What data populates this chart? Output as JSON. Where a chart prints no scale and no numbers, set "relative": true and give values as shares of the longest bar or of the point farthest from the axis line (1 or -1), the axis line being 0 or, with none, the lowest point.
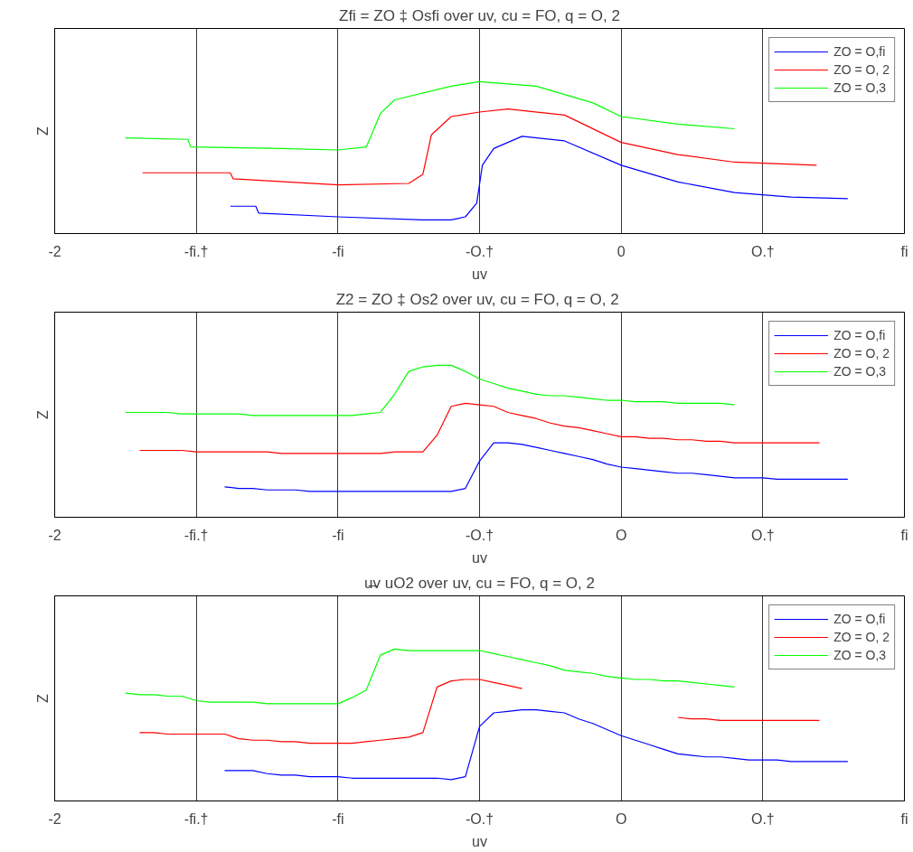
{
  "chart_data": [
    {
      "type": "line",
      "title": "Zfi = ZO ‡ Osfi over uv, cu = FO, q = O, 2",
      "xlabel": "uv",
      "ylabel": "Z",
      "xlim": [
        -2,
        1
      ],
      "relative": true,
      "xticks": [
        -2,
        {
          "value": -1.5,
          "label": "-fi.†"
        },
        {
          "value": -1,
          "label": "-fi"
        },
        {
          "value": -0.5,
          "label": "-O.†"
        },
        0,
        {
          "value": 0.5,
          "label": "O.†"
        },
        {
          "value": 1,
          "label": "fi"
        }
      ],
      "grid": "x",
      "legend": "top right",
      "series": [
        {
          "name": "ZO = O,fi",
          "color": "#0000ff",
          "x": [
            -1.38,
            -1.29,
            -1.28,
            -1.0,
            -0.7,
            -0.6,
            -0.55,
            -0.51,
            -0.49,
            -0.45,
            -0.35,
            -0.2,
            0,
            0.2,
            0.4,
            0.6,
            0.8
          ],
          "values": [
            0.18,
            0.18,
            0.135,
            0.11,
            0.09,
            0.09,
            0.11,
            0.2,
            0.45,
            0.56,
            0.64,
            0.61,
            0.45,
            0.34,
            0.27,
            0.24,
            0.23
          ]
        },
        {
          "name": "ZO = O, 2",
          "color": "#ff0000",
          "x": [
            -1.69,
            -1.38,
            -1.37,
            -1.0,
            -0.75,
            -0.7,
            -0.67,
            -0.6,
            -0.5,
            -0.4,
            -0.2,
            0,
            0.2,
            0.4,
            0.69
          ],
          "values": [
            0.4,
            0.4,
            0.36,
            0.32,
            0.33,
            0.39,
            0.65,
            0.77,
            0.8,
            0.82,
            0.78,
            0.6,
            0.52,
            0.47,
            0.45
          ]
        },
        {
          "name": "ZO = O,3",
          "color": "#00ff00",
          "x": [
            -1.75,
            -1.53,
            -1.52,
            -1.2,
            -1.0,
            -0.9,
            -0.85,
            -0.8,
            -0.6,
            -0.5,
            -0.3,
            -0.1,
            0,
            0.2,
            0.4
          ],
          "values": [
            0.63,
            0.62,
            0.57,
            0.56,
            0.55,
            0.57,
            0.79,
            0.88,
            0.97,
            1,
            0.97,
            0.86,
            0.77,
            0.72,
            0.69
          ]
        }
      ]
    },
    {
      "type": "line",
      "title": "Z2 = ZO ‡ Os2 over uv, cu = FO, q = O,  2",
      "xlabel": "uv",
      "ylabel": "Z",
      "relative": true,
      "grid": "x",
      "legend": "top right",
      "categories": [
        "-2",
        null,
        null,
        null,
        null,
        null,
        null,
        null,
        null,
        null,
        "-fi.†",
        null,
        null,
        null,
        null,
        null,
        null,
        null,
        null,
        null,
        "-fi",
        null,
        null,
        null,
        null,
        null,
        null,
        null,
        null,
        null,
        "-O.†",
        null,
        null,
        null,
        null,
        null,
        null,
        null,
        null,
        null,
        "O",
        null,
        null,
        null,
        null,
        null,
        null,
        null,
        null,
        null,
        "O.†",
        null,
        null,
        null,
        null,
        null,
        null,
        null,
        null,
        null,
        "fi"
      ],
      "series": [
        {
          "name": "ZO = O,fi",
          "color": "#0000ff",
          "values": [
            null,
            null,
            null,
            null,
            null,
            null,
            null,
            null,
            null,
            null,
            null,
            null,
            0.2,
            0.19,
            0.19,
            0.18,
            0.18,
            0.18,
            0.17,
            0.17,
            0.17,
            0.17,
            0.17,
            0.17,
            0.17,
            0.17,
            0.17,
            0.17,
            0.17,
            0.19,
            0.37,
            0.49,
            0.49,
            0.48,
            0.46,
            0.44,
            0.42,
            0.4,
            0.38,
            0.35,
            0.33,
            0.32,
            0.31,
            0.3,
            0.29,
            0.29,
            0.28,
            0.27,
            0.26,
            0.26,
            0.26,
            0.25,
            0.25,
            0.25,
            0.25,
            0.25,
            0.25,
            null,
            null,
            null,
            null
          ]
        },
        {
          "name": "ZO = O, 2",
          "color": "#ff0000",
          "values": [
            null,
            null,
            null,
            null,
            null,
            null,
            0.44,
            0.44,
            0.44,
            0.44,
            0.43,
            0.43,
            0.43,
            0.43,
            0.43,
            0.43,
            0.42,
            0.42,
            0.42,
            0.42,
            0.42,
            0.42,
            0.42,
            0.42,
            0.43,
            0.43,
            0.43,
            0.54,
            0.73,
            0.75,
            0.74,
            0.73,
            0.69,
            0.67,
            0.65,
            0.62,
            0.6,
            0.59,
            0.57,
            0.55,
            0.53,
            0.53,
            0.52,
            0.52,
            0.51,
            0.51,
            0.5,
            0.5,
            0.49,
            0.49,
            0.49,
            0.49,
            0.49,
            0.49,
            0.49,
            null,
            null,
            null,
            null,
            null,
            null
          ]
        },
        {
          "name": "ZO = O,3",
          "color": "#00ff00",
          "values": [
            null,
            null,
            null,
            null,
            null,
            0.69,
            0.69,
            0.69,
            0.69,
            0.68,
            0.68,
            0.68,
            0.68,
            0.68,
            0.67,
            0.67,
            0.67,
            0.67,
            0.67,
            0.67,
            0.67,
            0.67,
            0.68,
            0.69,
            0.81,
            0.96,
            0.99,
            1,
            1,
            0.96,
            0.91,
            0.88,
            0.85,
            0.83,
            0.81,
            0.8,
            0.8,
            0.79,
            0.78,
            0.77,
            0.77,
            0.76,
            0.76,
            0.76,
            0.75,
            0.75,
            0.75,
            0.75,
            0.74,
            null,
            null,
            null,
            null,
            null,
            null,
            null,
            null,
            null,
            null,
            null,
            null
          ]
        }
      ]
    },
    {
      "type": "line",
      "title": "u̶v uO2 over uv, cu = FO, q = O, 2",
      "xlabel": "uv",
      "ylabel": "Z",
      "relative": true,
      "grid": "x",
      "legend": "top right",
      "categories": [
        "-2",
        null,
        null,
        null,
        null,
        null,
        null,
        null,
        null,
        null,
        "-fi.†",
        null,
        null,
        null,
        null,
        null,
        null,
        null,
        null,
        null,
        "-fi",
        null,
        null,
        null,
        null,
        null,
        null,
        null,
        null,
        null,
        "-O.†",
        null,
        null,
        null,
        null,
        null,
        null,
        null,
        null,
        null,
        "O",
        null,
        null,
        null,
        null,
        null,
        null,
        null,
        null,
        null,
        "O.†",
        null,
        null,
        null,
        null,
        null,
        null,
        null,
        null,
        null,
        "fi"
      ],
      "series": [
        {
          "name": "ZO = O,fi",
          "color": "#0000ff",
          "values": [
            null,
            null,
            null,
            null,
            null,
            null,
            null,
            null,
            null,
            null,
            null,
            null,
            0.2,
            0.2,
            0.2,
            0.18,
            0.17,
            0.17,
            0.16,
            0.16,
            0.16,
            0.15,
            0.15,
            0.15,
            0.15,
            0.15,
            0.15,
            0.15,
            0.14,
            0.16,
            0.49,
            0.58,
            0.59,
            0.6,
            0.6,
            0.59,
            0.58,
            0.54,
            0.51,
            0.47,
            0.43,
            0.4,
            0.37,
            0.34,
            0.31,
            0.3,
            0.29,
            0.29,
            0.28,
            0.27,
            0.27,
            0.27,
            0.26,
            0.26,
            0.26,
            0.26,
            0.26,
            null,
            null,
            null,
            null
          ]
        },
        {
          "name": "ZO = O, 2",
          "color": "#ff0000",
          "values": [
            null,
            null,
            null,
            null,
            null,
            null,
            0.45,
            0.45,
            0.44,
            0.44,
            0.44,
            0.44,
            0.44,
            0.41,
            0.4,
            0.4,
            0.39,
            0.39,
            0.38,
            0.38,
            0.38,
            0.38,
            0.39,
            0.4,
            0.41,
            0.42,
            0.45,
            0.75,
            0.79,
            0.8,
            0.8,
            0.78,
            0.76,
            0.74,
            null,
            null,
            null,
            null,
            null,
            null,
            null,
            null,
            null,
            null,
            0.55,
            0.54,
            0.54,
            0.53,
            0.53,
            0.53,
            0.53,
            0.53,
            0.53,
            0.53,
            0.53,
            null,
            null,
            null,
            null,
            null,
            null
          ]
        },
        {
          "name": "ZO = O,3",
          "color": "#00ff00",
          "values": [
            null,
            null,
            null,
            null,
            null,
            0.71,
            0.7,
            0.7,
            0.69,
            0.69,
            0.66,
            0.65,
            0.65,
            0.65,
            0.65,
            0.64,
            0.64,
            0.64,
            0.64,
            0.64,
            0.64,
            0.68,
            0.73,
            0.96,
            1,
            0.99,
            0.99,
            0.99,
            0.99,
            0.99,
            0.99,
            0.97,
            0.95,
            0.93,
            0.91,
            0.89,
            0.86,
            0.85,
            0.84,
            0.82,
            0.81,
            0.8,
            0.8,
            0.79,
            0.79,
            0.78,
            0.77,
            0.76,
            0.75,
            null,
            null,
            null,
            null,
            null,
            null,
            null,
            null,
            null,
            null,
            null,
            null
          ]
        }
      ]
    }
  ]
}
